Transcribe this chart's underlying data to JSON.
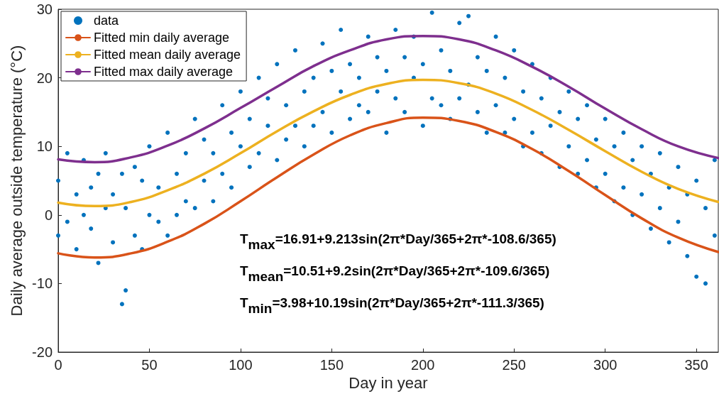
{
  "chart_data": {
    "type": "scatter",
    "xlabel": "Day in year",
    "ylabel": "Daily average outside temperature (°C)",
    "xlim": [
      0,
      362
    ],
    "xticks": [
      0,
      50,
      100,
      150,
      200,
      250,
      300,
      350
    ],
    "ylim": [
      -20,
      30
    ],
    "yticks": [
      -20,
      -10,
      0,
      10,
      20,
      30
    ],
    "grid": false,
    "legend": "top left",
    "annotations": [
      "T$_{max}$=16.91+9.213sin(2π*Day/365+2π*-108.6/365)",
      "T$_{mean}$=10.51+9.2sin(2π*Day/365+2π*-109.6/365)",
      "T$_{min}$=3.98+10.19sin(2π*Day/365+2π*-111.3/365)"
    ],
    "series": [
      {
        "name": "data",
        "marker": "circle",
        "color": "#0072bd",
        "x": [
          0,
          0,
          5,
          5,
          10,
          10,
          14,
          14,
          18,
          18,
          22,
          22,
          26,
          26,
          30,
          30,
          35,
          35,
          37,
          37,
          42,
          42,
          46,
          46,
          50,
          50,
          55,
          55,
          60,
          60,
          65,
          65,
          70,
          70,
          75,
          75,
          80,
          80,
          85,
          85,
          90,
          90,
          95,
          95,
          100,
          100,
          105,
          105,
          110,
          110,
          115,
          115,
          120,
          120,
          125,
          125,
          130,
          130,
          135,
          135,
          140,
          140,
          145,
          145,
          150,
          150,
          155,
          155,
          160,
          160,
          165,
          165,
          170,
          170,
          175,
          175,
          180,
          180,
          185,
          185,
          190,
          190,
          195,
          195,
          200,
          200,
          205,
          205,
          210,
          210,
          215,
          215,
          220,
          220,
          225,
          225,
          230,
          230,
          235,
          235,
          240,
          240,
          245,
          245,
          250,
          250,
          255,
          255,
          260,
          260,
          265,
          265,
          270,
          270,
          275,
          275,
          280,
          280,
          285,
          285,
          290,
          290,
          295,
          295,
          300,
          300,
          305,
          305,
          310,
          310,
          315,
          315,
          320,
          320,
          325,
          325,
          330,
          330,
          335,
          335,
          340,
          340,
          345,
          345,
          350,
          350,
          355,
          355,
          360,
          360
        ],
        "values": [
          5,
          -3,
          9,
          -1,
          3,
          -5,
          8,
          0,
          -2,
          4,
          6,
          -7,
          1,
          9,
          -4,
          3,
          -13,
          6,
          -11,
          1,
          -3,
          7,
          5,
          -5,
          10,
          0,
          -1,
          4,
          12,
          -3,
          6,
          0,
          9,
          2,
          14,
          1,
          5,
          11,
          2,
          9,
          16,
          6,
          4,
          12,
          10,
          18,
          7,
          14,
          20,
          9,
          13,
          17,
          8,
          22,
          16,
          11,
          24,
          13,
          10,
          18,
          20,
          13,
          25,
          15,
          12,
          21,
          18,
          27,
          14,
          22,
          20,
          16,
          26,
          15,
          18,
          23,
          12,
          21,
          27,
          17,
          15,
          23,
          20,
          26,
          13,
          22,
          29.5,
          17,
          16,
          24,
          21,
          14,
          28,
          17,
          29,
          19,
          15,
          23,
          21,
          12,
          26,
          16,
          12,
          20,
          24,
          14,
          18,
          10,
          22,
          12,
          9,
          17,
          20,
          13,
          15,
          7,
          18,
          10,
          6,
          14,
          16,
          8,
          11,
          4,
          14,
          6,
          2,
          10,
          12,
          4,
          0,
          8,
          10,
          3,
          -2,
          6,
          9,
          1,
          -4,
          4,
          7,
          -1,
          -6,
          3,
          5,
          -9,
          1,
          -10,
          8,
          -3
        ]
      },
      {
        "name": "Fitted min daily average",
        "type": "line",
        "marker": "none",
        "color": "#d95319",
        "x": [
          0,
          20,
          40,
          60,
          80,
          100,
          120,
          140,
          160,
          180,
          200,
          220,
          240,
          260,
          280,
          300,
          320,
          340,
          362
        ],
        "values": [
          -5.6,
          -6.2,
          -5.6,
          -3.9,
          -1.3,
          2.0,
          5.5,
          8.8,
          11.6,
          13.4,
          14.2,
          13.7,
          12.1,
          9.6,
          6.4,
          2.9,
          -0.5,
          -3.3,
          -5.4
        ]
      },
      {
        "name": "Fitted mean daily average",
        "type": "line",
        "marker": "none",
        "color": "#edb120",
        "x": [
          0,
          20,
          40,
          60,
          80,
          100,
          120,
          140,
          160,
          180,
          200,
          220,
          240,
          260,
          280,
          300,
          320,
          340,
          362
        ],
        "values": [
          1.8,
          1.3,
          1.9,
          3.6,
          6.0,
          9.0,
          12.2,
          15.1,
          17.5,
          19.1,
          19.7,
          19.2,
          17.7,
          15.3,
          12.4,
          9.3,
          6.3,
          3.8,
          1.9
        ]
      },
      {
        "name": "Fitted max daily average",
        "type": "line",
        "marker": "none",
        "color": "#7e2f8e",
        "x": [
          0,
          20,
          40,
          60,
          80,
          100,
          120,
          140,
          160,
          180,
          200,
          220,
          240,
          260,
          280,
          300,
          320,
          340,
          362
        ],
        "values": [
          8.1,
          7.7,
          8.4,
          10.1,
          12.6,
          15.6,
          18.7,
          21.7,
          24.0,
          25.6,
          26.1,
          25.6,
          24.0,
          21.6,
          18.7,
          15.5,
          12.5,
          10.0,
          8.3
        ]
      }
    ]
  }
}
